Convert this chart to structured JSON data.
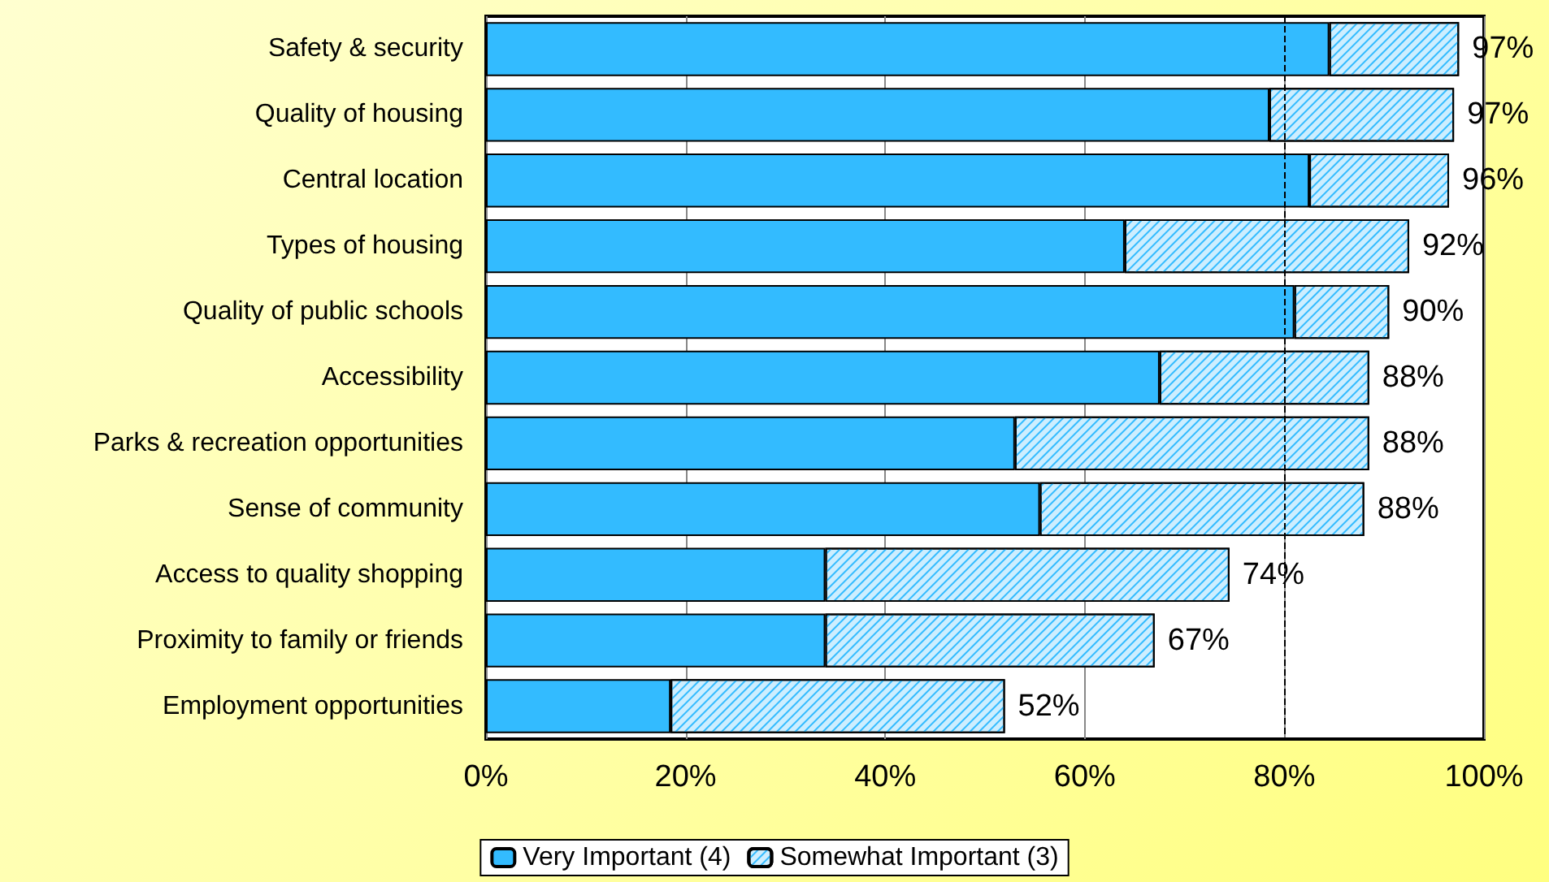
{
  "chart_data": {
    "type": "bar",
    "orientation": "horizontal",
    "stacked": true,
    "categories": [
      "Safety & security",
      "Quality of housing",
      "Central location",
      "Types of housing",
      "Quality of public schools",
      "Accessibility",
      "Parks & recreation opportunities",
      "Sense of community",
      "Access to quality shopping",
      "Proximity to family or friends",
      "Employment opportunities"
    ],
    "series": [
      {
        "name": "Very Important (4)",
        "color": "#33bbff",
        "values": [
          84.5,
          78.5,
          82.5,
          64,
          81,
          67.5,
          53,
          55.5,
          34,
          34,
          18.5
        ]
      },
      {
        "name": "Somewhat Important (3)",
        "color": "#cdeeff",
        "values": [
          13,
          18.5,
          14,
          28.5,
          9.5,
          21,
          35.5,
          32.5,
          40.5,
          33,
          33.5
        ]
      }
    ],
    "totals": [
      "97%",
      "97%",
      "96%",
      "92%",
      "90%",
      "88%",
      "88%",
      "88%",
      "74%",
      "67%",
      "52%"
    ],
    "xlim": [
      0,
      100
    ],
    "xticks": [
      {
        "value": 0,
        "label": "0%"
      },
      {
        "value": 20,
        "label": "20%"
      },
      {
        "value": 40,
        "label": "40%"
      },
      {
        "value": 60,
        "label": "60%"
      },
      {
        "value": 80,
        "label": "80%"
      },
      {
        "value": 100,
        "label": "100%"
      }
    ],
    "ref_lines": [
      {
        "axis": "x",
        "value": 80,
        "label": null,
        "color": "#000000",
        "line_style": "dashed"
      }
    ],
    "grid": "x",
    "legend": "bottom"
  }
}
